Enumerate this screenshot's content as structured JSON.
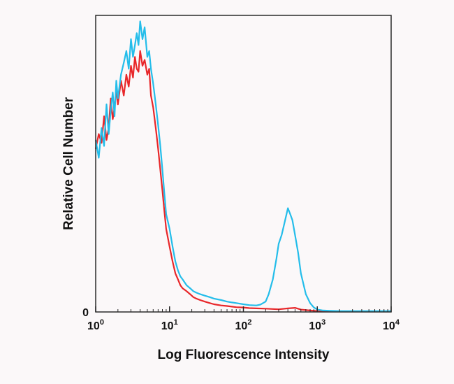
{
  "chart_data": {
    "type": "line",
    "title": "",
    "xlabel": "Log Fluorescence Intensity",
    "ylabel": "Relative Cell Number",
    "x_scale": "log",
    "xlim": [
      1,
      10000
    ],
    "ylim": [
      0,
      100
    ],
    "x_ticks": [
      {
        "value": 1,
        "base": "10",
        "exp": "0"
      },
      {
        "value": 10,
        "base": "10",
        "exp": "1"
      },
      {
        "value": 100,
        "base": "10",
        "exp": "2"
      },
      {
        "value": 1000,
        "base": "10",
        "exp": "3"
      },
      {
        "value": 10000,
        "base": "10",
        "exp": "4"
      }
    ],
    "y_ticks": [
      {
        "value": 0,
        "label": "0"
      }
    ],
    "grid": false,
    "series": [
      {
        "color": "#e8272a",
        "x": [
          1.0,
          1.1,
          1.2,
          1.3,
          1.4,
          1.5,
          1.6,
          1.7,
          1.8,
          1.9,
          2.0,
          2.2,
          2.4,
          2.6,
          2.8,
          3.0,
          3.2,
          3.4,
          3.6,
          3.8,
          4.0,
          4.3,
          4.6,
          5.0,
          5.3,
          5.6,
          6.0,
          6.5,
          7.0,
          7.5,
          8.0,
          8.5,
          9.0,
          10,
          11,
          12,
          13,
          14,
          15,
          17,
          19,
          21,
          23,
          26,
          30,
          35,
          40,
          50,
          60,
          70,
          80,
          100,
          120,
          150,
          200,
          250,
          300,
          400,
          500,
          600,
          800,
          1000,
          2000,
          5000,
          10000
        ],
        "y": [
          55,
          60,
          57,
          66,
          58,
          62,
          72,
          65,
          69,
          75,
          70,
          78,
          73,
          80,
          76,
          83,
          79,
          86,
          82,
          81,
          88,
          83,
          85,
          80,
          82,
          73,
          69,
          62,
          55,
          48,
          41,
          34,
          28,
          22,
          17,
          13,
          11,
          9,
          8,
          7,
          6,
          5,
          4.5,
          4,
          3.5,
          3,
          2.6,
          2.2,
          2,
          1.8,
          1.6,
          1.5,
          1.3,
          1.2,
          1.1,
          1,
          0.9,
          1.2,
          1.4,
          0.8,
          0.5,
          0.3,
          0.2,
          0.2,
          0.2
        ]
      },
      {
        "color": "#24bdea",
        "x": [
          1.0,
          1.1,
          1.2,
          1.3,
          1.4,
          1.5,
          1.6,
          1.7,
          1.8,
          1.9,
          2.0,
          2.2,
          2.4,
          2.6,
          2.8,
          3.0,
          3.2,
          3.4,
          3.6,
          3.8,
          4.0,
          4.3,
          4.6,
          5.0,
          5.3,
          5.6,
          6.0,
          6.5,
          7.0,
          7.5,
          8.0,
          8.5,
          9.0,
          10,
          11,
          12,
          13,
          14,
          15,
          17,
          19,
          21,
          23,
          26,
          30,
          35,
          40,
          50,
          60,
          70,
          80,
          100,
          120,
          150,
          170,
          200,
          220,
          250,
          280,
          300,
          330,
          360,
          400,
          430,
          460,
          500,
          550,
          600,
          700,
          800,
          900,
          1000,
          1200,
          1500,
          2000,
          3000,
          5000,
          10000
        ],
        "y": [
          58,
          52,
          62,
          56,
          70,
          60,
          68,
          74,
          66,
          78,
          72,
          80,
          84,
          88,
          82,
          92,
          86,
          90,
          94,
          90,
          98,
          92,
          96,
          86,
          88,
          82,
          77,
          70,
          63,
          56,
          48,
          40,
          33,
          28,
          22,
          17,
          14,
          12,
          11,
          9,
          8,
          7,
          6.5,
          6,
          5.5,
          5,
          4.5,
          4,
          3.5,
          3.2,
          3,
          2.6,
          2.3,
          2.2,
          2.5,
          3.5,
          6,
          11,
          18,
          23,
          26,
          30,
          35,
          33,
          31,
          26,
          20,
          13,
          6,
          3,
          1.5,
          0.8,
          0.5,
          0.4,
          0.3,
          0.3,
          0.3,
          0.3
        ]
      }
    ]
  }
}
